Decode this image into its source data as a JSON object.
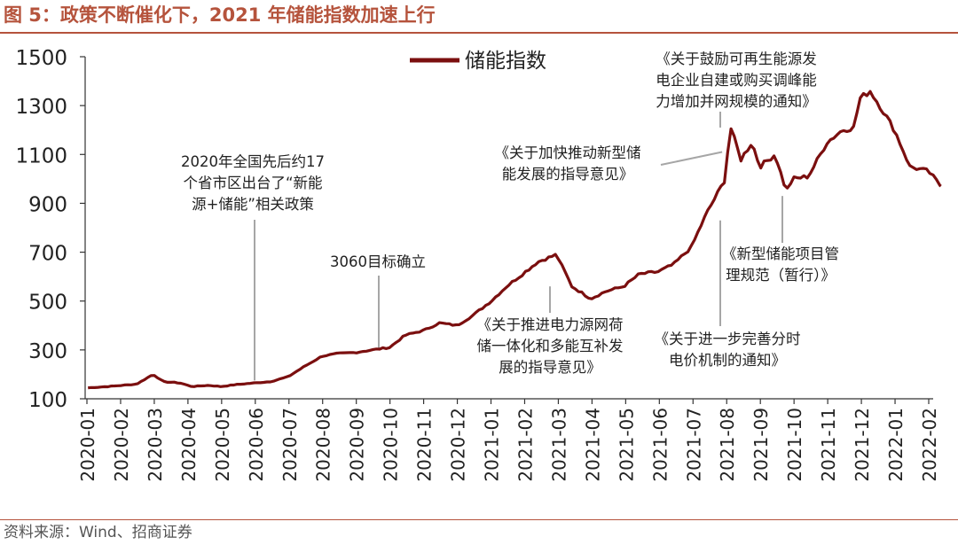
{
  "figure": {
    "title": "图 5：政策不断催化下，2021 年储能指数加速上行",
    "source": "资料来源：Wind、招商证券"
  },
  "colors": {
    "accent": "#b5533c",
    "series": "#7b0f0f",
    "axis": "#333333",
    "callout": "#a6a6a6"
  },
  "chart_data": {
    "type": "line",
    "title": "",
    "xlabel": "",
    "ylabel": "",
    "ylim": [
      100,
      1500
    ],
    "yticks": [
      100,
      300,
      500,
      700,
      900,
      1100,
      1300,
      1500
    ],
    "x_ticks": [
      "2020-01",
      "2020-02",
      "2020-03",
      "2020-04",
      "2020-05",
      "2020-06",
      "2020-07",
      "2020-08",
      "2020-09",
      "2020-10",
      "2020-11",
      "2020-12",
      "2021-01",
      "2021-02",
      "2021-03",
      "2021-04",
      "2021-05",
      "2021-06",
      "2021-07",
      "2021-08",
      "2021-09",
      "2021-10",
      "2021-11",
      "2021-12",
      "2022-01",
      "2022-02"
    ],
    "legend": {
      "position": "top-center"
    },
    "grid": false,
    "series": [
      {
        "name": "储能指数",
        "x": [
          "2020-01-02",
          "2020-01-20",
          "2020-02-15",
          "2020-03-01",
          "2020-03-10",
          "2020-03-25",
          "2020-04-05",
          "2020-04-20",
          "2020-05-01",
          "2020-05-15",
          "2020-06-01",
          "2020-06-15",
          "2020-07-01",
          "2020-07-15",
          "2020-08-01",
          "2020-08-15",
          "2020-09-01",
          "2020-09-15",
          "2020-10-01",
          "2020-10-15",
          "2020-11-01",
          "2020-11-15",
          "2020-12-01",
          "2020-12-15",
          "2021-01-01",
          "2021-01-15",
          "2021-02-01",
          "2021-02-12",
          "2021-03-01",
          "2021-03-15",
          "2021-04-01",
          "2021-04-15",
          "2021-05-01",
          "2021-05-15",
          "2021-06-01",
          "2021-06-15",
          "2021-07-01",
          "2021-07-15",
          "2021-08-01",
          "2021-08-05",
          "2021-08-15",
          "2021-08-25",
          "2021-09-01",
          "2021-09-15",
          "2021-09-25",
          "2021-10-01",
          "2021-10-15",
          "2021-11-01",
          "2021-11-15",
          "2021-11-25",
          "2021-12-01",
          "2021-12-10",
          "2021-12-20",
          "2022-01-01",
          "2022-01-15",
          "2022-02-01",
          "2022-02-12"
        ],
        "y": [
          145,
          150,
          160,
          200,
          170,
          165,
          150,
          155,
          150,
          158,
          165,
          170,
          190,
          230,
          275,
          285,
          290,
          300,
          310,
          360,
          380,
          410,
          400,
          440,
          500,
          560,
          620,
          660,
          690,
          560,
          510,
          540,
          560,
          610,
          620,
          650,
          720,
          860,
          1000,
          1220,
          1080,
          1150,
          1050,
          1100,
          950,
          1000,
          1010,
          1150,
          1200,
          1210,
          1330,
          1360,
          1290,
          1200,
          1050,
          1030,
          970
        ]
      }
    ],
    "annotations": [
      {
        "lines": [
          "2020年全国先后约17",
          "个省市区出台了“新能",
          "源+储能”相关政策"
        ],
        "x": "2020-06-01",
        "y": 175
      },
      {
        "lines": [
          "3060目标确立"
        ],
        "x": "2020-09-22",
        "y": 300
      },
      {
        "lines": [
          "《关于推进电力源网荷",
          "储一体化和多能互补发",
          "展的指导意见》"
        ],
        "x": "2021-03-01",
        "y": 560
      },
      {
        "lines": [
          "《关于加快推动新型储",
          "能发展的指导意见》"
        ],
        "x": "2021-07-29",
        "y": 1110
      },
      {
        "lines": [
          "《关于鼓励可再生能源发",
          "电企业自建或购买调峰能",
          "力增加并网规模的通知》"
        ],
        "x": "2021-08-10",
        "y": 1210
      },
      {
        "lines": [
          "《关于进一步完善分时",
          "电价机制的通知》"
        ],
        "x": "2021-07-30",
        "y": 830
      },
      {
        "lines": [
          "《新型储能项目管",
          "理规范（暂行）》"
        ],
        "x": "2021-09-24",
        "y": 930
      }
    ]
  }
}
